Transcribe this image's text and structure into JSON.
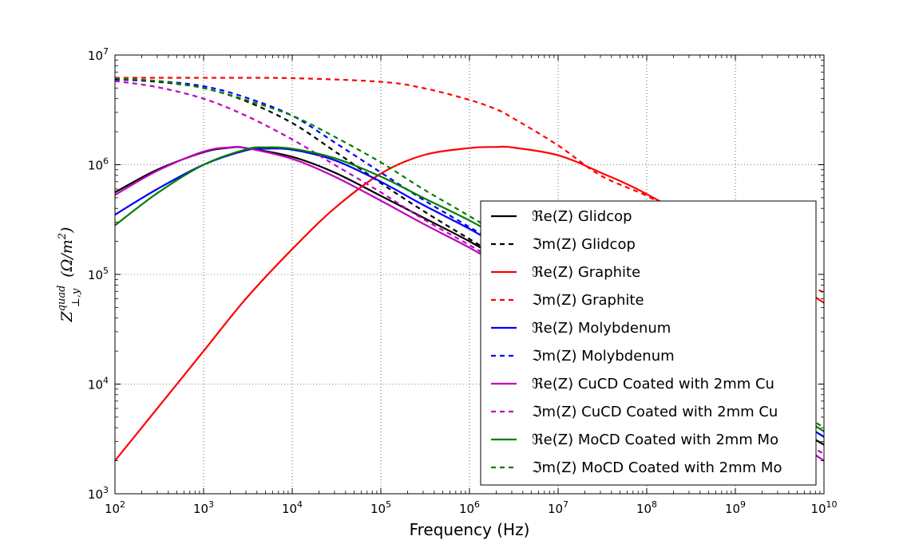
{
  "chart_data": {
    "type": "line",
    "title": "",
    "xlabel": "Frequency (Hz)",
    "ylabel": "Z^{quad}_{⊥,y} (Ω/m^2)",
    "xscale": "log",
    "yscale": "log",
    "xlim": [
      100,
      10000000000
    ],
    "ylim": [
      1000,
      10000000
    ],
    "x_ticks": [
      "10^2",
      "10^3",
      "10^4",
      "10^5",
      "10^6",
      "10^7",
      "10^8",
      "10^9",
      "10^10"
    ],
    "y_ticks": [
      "10^3",
      "10^4",
      "10^5",
      "10^6",
      "10^7"
    ],
    "grid": true,
    "legend_position": "right",
    "series": [
      {
        "name": "ℜe(Z) Glidcop",
        "color": "#000000",
        "dash": "solid",
        "x": [
          100,
          300,
          1000,
          2000,
          3000,
          10000,
          30000,
          100000,
          300000,
          1000000,
          3000000,
          10000000,
          30000000,
          100000000,
          1000000000,
          10000000000
        ],
        "y": [
          560000,
          900000,
          1300000,
          1430000,
          1420000,
          1180000,
          850000,
          520000,
          330000,
          200000,
          120000,
          70000,
          42000,
          25000,
          8300,
          2800
        ]
      },
      {
        "name": "ℑm(Z) Glidcop",
        "color": "#000000",
        "dash": "dashed",
        "x": [
          100,
          300,
          1000,
          3000,
          10000,
          30000,
          100000,
          300000,
          1000000,
          3000000,
          10000000,
          30000000,
          100000000,
          1000000000,
          10000000000
        ],
        "y": [
          6000000,
          5700000,
          5000000,
          3800000,
          2400000,
          1330000,
          680000,
          380000,
          210000,
          125000,
          72000,
          43000,
          25000,
          8300,
          2800
        ]
      },
      {
        "name": "ℜe(Z) Graphite",
        "color": "#ff0000",
        "dash": "solid",
        "x": [
          100,
          300,
          1000,
          3000,
          10000,
          30000,
          100000,
          300000,
          1000000,
          2000000,
          3000000,
          10000000,
          30000000,
          100000000,
          1000000000,
          10000000000
        ],
        "y": [
          2000,
          6000,
          20000,
          60000,
          170000,
          400000,
          830000,
          1220000,
          1420000,
          1450000,
          1440000,
          1220000,
          850000,
          540000,
          185000,
          55000
        ]
      },
      {
        "name": "ℑm(Z) Graphite",
        "color": "#ff0000",
        "dash": "dashed",
        "x": [
          100,
          1000,
          10000,
          100000,
          300000,
          1000000,
          2000000,
          3000000,
          10000000,
          30000000,
          100000000,
          300000000,
          1000000000,
          3000000000,
          10000000000
        ],
        "y": [
          6200000,
          6200000,
          6150000,
          5700000,
          5000000,
          3900000,
          3200000,
          2700000,
          1500000,
          800000,
          520000,
          320000,
          190000,
          115000,
          68000
        ]
      },
      {
        "name": "ℜe(Z) Molybdenum",
        "color": "#0000ff",
        "dash": "solid",
        "x": [
          100,
          300,
          1000,
          3000,
          5000,
          10000,
          30000,
          100000,
          300000,
          1000000,
          3000000,
          10000000,
          100000000,
          1000000000,
          10000000000
        ],
        "y": [
          350000,
          600000,
          1000000,
          1350000,
          1400000,
          1370000,
          1100000,
          700000,
          430000,
          260000,
          155000,
          90000,
          32000,
          10500,
          3300
        ]
      },
      {
        "name": "ℑm(Z) Molybdenum",
        "color": "#0000ff",
        "dash": "dashed",
        "x": [
          100,
          300,
          1000,
          3000,
          10000,
          30000,
          100000,
          300000,
          1000000,
          3000000,
          10000000,
          100000000,
          1000000000,
          10000000000
        ],
        "y": [
          6000000,
          5800000,
          5200000,
          4100000,
          2800000,
          1600000,
          850000,
          480000,
          270000,
          160000,
          92000,
          32000,
          10500,
          3300
        ]
      },
      {
        "name": "ℜe(Z) CuCD Coated with 2mm Cu",
        "color": "#bf00bf",
        "dash": "solid",
        "x": [
          100,
          300,
          1000,
          2000,
          3000,
          10000,
          30000,
          100000,
          300000,
          1000000,
          3000000,
          10000000,
          100000000,
          1000000000,
          10000000000
        ],
        "y": [
          530000,
          880000,
          1320000,
          1440000,
          1420000,
          1130000,
          780000,
          470000,
          290000,
          175000,
          105000,
          62000,
          22000,
          7000,
          2000
        ]
      },
      {
        "name": "ℑm(Z) CuCD Coated with 2mm Cu",
        "color": "#bf00bf",
        "dash": "dashed",
        "x": [
          100,
          300,
          1000,
          3000,
          10000,
          30000,
          100000,
          300000,
          1000000,
          3000000,
          10000000,
          100000000,
          1000000000,
          10000000000
        ],
        "y": [
          5800000,
          5100000,
          4000000,
          2800000,
          1700000,
          1000000,
          560000,
          320000,
          185000,
          110000,
          64000,
          22000,
          7200,
          2300
        ]
      },
      {
        "name": "ℜe(Z) MoCD Coated with 2mm Mo",
        "color": "#007f00",
        "dash": "solid",
        "x": [
          100,
          300,
          1000,
          3000,
          5000,
          10000,
          30000,
          100000,
          300000,
          1000000,
          3000000,
          10000000,
          100000000,
          1000000000,
          10000000000
        ],
        "y": [
          280000,
          550000,
          1000000,
          1380000,
          1440000,
          1400000,
          1150000,
          780000,
          500000,
          310000,
          190000,
          110000,
          37000,
          12000,
          3700
        ]
      },
      {
        "name": "ℑm(Z) MoCD Coated with 2mm Mo",
        "color": "#007f00",
        "dash": "dashed",
        "x": [
          100,
          300,
          1000,
          3000,
          10000,
          30000,
          100000,
          300000,
          1000000,
          3000000,
          10000000,
          100000000,
          1000000000,
          10000000000
        ],
        "y": [
          6100000,
          5800000,
          5000000,
          3900000,
          2800000,
          1800000,
          1050000,
          600000,
          340000,
          200000,
          115000,
          40000,
          13000,
          4000
        ]
      }
    ]
  }
}
